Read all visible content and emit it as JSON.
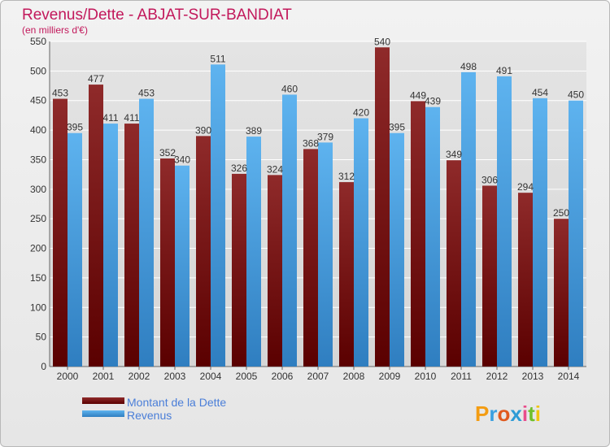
{
  "chart_data": {
    "type": "bar",
    "title": "Revenus/Dette - ABJAT-SUR-BANDIAT",
    "subtitle": "(en milliers d'€)",
    "xlabel": "",
    "ylabel": "",
    "categories": [
      "2000",
      "2001",
      "2002",
      "2003",
      "2004",
      "2005",
      "2006",
      "2007",
      "2008",
      "2009",
      "2010",
      "2011",
      "2012",
      "2013",
      "2014"
    ],
    "series": [
      {
        "name": "Montant de la Dette",
        "values": [
          453,
          477,
          411,
          352,
          390,
          326,
          324,
          368,
          312,
          540,
          449,
          349,
          306,
          294,
          250
        ]
      },
      {
        "name": "Revenus",
        "values": [
          395,
          411,
          453,
          340,
          511,
          389,
          460,
          379,
          420,
          395,
          439,
          498,
          491,
          454,
          450
        ]
      }
    ],
    "ylim": [
      0,
      550
    ],
    "yticks": [
      0,
      50,
      100,
      150,
      200,
      250,
      300,
      350,
      400,
      450,
      500,
      550
    ],
    "grid": true,
    "legend_position": "bottom-left"
  },
  "colors": {
    "dette": "#8c1c1c",
    "revenus": "#4da3e6",
    "grid": "#ffffff",
    "title": "#c2185b"
  },
  "logo": {
    "text": "Proxiti"
  }
}
